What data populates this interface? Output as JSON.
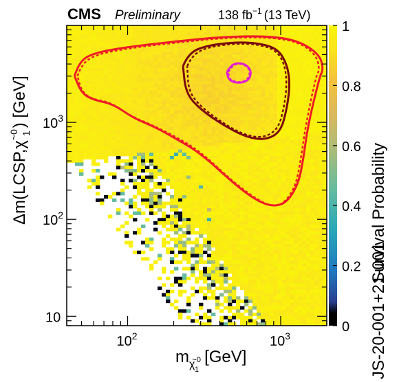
{
  "header": {
    "experiment": "CMS",
    "status": "Preliminary",
    "lumi_value": "138 fb",
    "lumi_exp": "−1",
    "energy": "(13 TeV)"
  },
  "ylabel": {
    "main": "Δm(LCSP,",
    "chi": "χ",
    "chi_sup": "~0",
    "chi_sub": "1",
    "unit": ") [GeV]"
  },
  "xlabel": {
    "m": "m",
    "chi": "χ",
    "chi_sup": "~0",
    "chi_sub": "1",
    "unit": "[GeV]"
  },
  "zlabel": "Survival Probability",
  "side_text": "JS-20-001+21-001",
  "chart_data": {
    "type": "heatmap",
    "xlabel": "m(χ̃1⁰) [GeV]",
    "ylabel": "Δm(LCSP, χ̃1⁰) [GeV]",
    "zlabel": "Survival Probability",
    "x_scale": "log",
    "y_scale": "log",
    "xlim": [
      40,
      2000
    ],
    "ylim": [
      8,
      10000
    ],
    "zlim": [
      0,
      1
    ],
    "x_ticks": [
      {
        "value": 100,
        "label": "10",
        "exp": "2"
      },
      {
        "value": 1000,
        "label": "10",
        "exp": "3"
      }
    ],
    "y_ticks": [
      {
        "value": 10,
        "label": "10",
        "exp": ""
      },
      {
        "value": 100,
        "label": "10",
        "exp": "2"
      },
      {
        "value": 1000,
        "label": "10",
        "exp": "3"
      }
    ],
    "z_ticks": [
      {
        "value": 0,
        "label": "0"
      },
      {
        "value": 0.2,
        "label": "0.2"
      },
      {
        "value": 0.4,
        "label": "0.4"
      },
      {
        "value": 0.6,
        "label": "0.6"
      },
      {
        "value": 0.8,
        "label": "0.8"
      },
      {
        "value": 1,
        "label": "1"
      }
    ],
    "colormap": [
      "#000000",
      "#2a3f8f",
      "#1f77c0",
      "#28a8b8",
      "#63bba0",
      "#a8bd7a",
      "#d9b85e",
      "#f5c23a",
      "#fbe41c",
      "#faf50a"
    ],
    "contours": [
      {
        "name": "outer",
        "color": "#ee1c25",
        "style": "solid",
        "points": [
          [
            45,
            3000
          ],
          [
            48,
            4200
          ],
          [
            60,
            5200
          ],
          [
            100,
            6000
          ],
          [
            200,
            6800
          ],
          [
            400,
            7600
          ],
          [
            800,
            7800
          ],
          [
            1300,
            7000
          ],
          [
            1800,
            5000
          ],
          [
            1900,
            3500
          ],
          [
            1800,
            3000
          ],
          [
            1500,
            900
          ],
          [
            1400,
            400
          ],
          [
            1300,
            230
          ],
          [
            1100,
            150
          ],
          [
            900,
            135
          ],
          [
            700,
            155
          ],
          [
            500,
            230
          ],
          [
            300,
            480
          ],
          [
            200,
            700
          ],
          [
            150,
            900
          ],
          [
            110,
            1100
          ],
          [
            80,
            1550
          ],
          [
            60,
            1700
          ],
          [
            50,
            2000
          ],
          [
            45,
            3000
          ]
        ]
      },
      {
        "name": "outer-expected",
        "color": "#ee1c25",
        "style": "dashed",
        "points": [
          [
            47,
            3000
          ],
          [
            50,
            4000
          ],
          [
            62,
            5000
          ],
          [
            100,
            5800
          ],
          [
            200,
            6600
          ],
          [
            400,
            7400
          ],
          [
            800,
            7600
          ],
          [
            1300,
            6800
          ],
          [
            1700,
            5000
          ],
          [
            1800,
            3500
          ],
          [
            1700,
            3000
          ],
          [
            1450,
            900
          ],
          [
            1350,
            400
          ],
          [
            1250,
            220
          ],
          [
            1050,
            145
          ],
          [
            870,
            135
          ],
          [
            680,
            165
          ],
          [
            480,
            250
          ],
          [
            290,
            520
          ],
          [
            190,
            760
          ],
          [
            140,
            960
          ],
          [
            105,
            1160
          ],
          [
            78,
            1600
          ],
          [
            58,
            1750
          ],
          [
            50,
            2100
          ],
          [
            47,
            3000
          ]
        ]
      },
      {
        "name": "middle",
        "color": "#7a0c0c",
        "style": "solid",
        "points": [
          [
            230,
            3800
          ],
          [
            250,
            5200
          ],
          [
            330,
            6200
          ],
          [
            500,
            6700
          ],
          [
            700,
            6600
          ],
          [
            950,
            5800
          ],
          [
            1100,
            4000
          ],
          [
            1150,
            2500
          ],
          [
            1100,
            1400
          ],
          [
            1000,
            800
          ],
          [
            800,
            660
          ],
          [
            600,
            700
          ],
          [
            430,
            920
          ],
          [
            300,
            1350
          ],
          [
            240,
            2000
          ],
          [
            230,
            3800
          ]
        ]
      },
      {
        "name": "middle-expected",
        "color": "#7a0c0c",
        "style": "dashed",
        "points": [
          [
            245,
            3800
          ],
          [
            265,
            5000
          ],
          [
            340,
            6000
          ],
          [
            500,
            6500
          ],
          [
            700,
            6400
          ],
          [
            930,
            5600
          ],
          [
            1060,
            4000
          ],
          [
            1100,
            2500
          ],
          [
            1050,
            1400
          ],
          [
            960,
            850
          ],
          [
            770,
            690
          ],
          [
            580,
            740
          ],
          [
            420,
            980
          ],
          [
            300,
            1450
          ],
          [
            250,
            2100
          ],
          [
            245,
            3800
          ]
        ]
      },
      {
        "name": "inner",
        "color": "#e020d0",
        "style": "solid",
        "points": [
          [
            445,
            3300
          ],
          [
            470,
            3850
          ],
          [
            520,
            4100
          ],
          [
            580,
            4000
          ],
          [
            630,
            3600
          ],
          [
            640,
            3100
          ],
          [
            610,
            2700
          ],
          [
            550,
            2550
          ],
          [
            490,
            2600
          ],
          [
            455,
            2800
          ],
          [
            445,
            3300
          ]
        ]
      },
      {
        "name": "inner-expected",
        "color": "#e020d0",
        "style": "dashed",
        "points": [
          [
            455,
            3300
          ],
          [
            480,
            3800
          ],
          [
            525,
            4050
          ],
          [
            575,
            3950
          ],
          [
            620,
            3580
          ],
          [
            628,
            3100
          ],
          [
            600,
            2740
          ],
          [
            548,
            2590
          ],
          [
            495,
            2640
          ],
          [
            462,
            2820
          ],
          [
            455,
            3300
          ]
        ]
      }
    ]
  }
}
